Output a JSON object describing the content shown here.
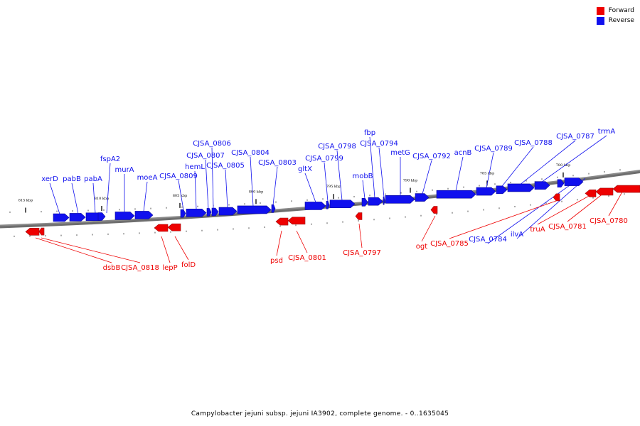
{
  "caption": "Campylobacter jejuni subsp. jejuni IA3902, complete genome. - 0..1635045",
  "legend": [
    {
      "label": "Forward",
      "color": "#ee0000"
    },
    {
      "label": "Reverse",
      "color": "#1010ee"
    }
  ],
  "colors": {
    "forward": "#ee0000",
    "reverse": "#1010ee",
    "backbone": "#8a8a8a"
  },
  "scale_labels": [
    "815 kbp",
    "810 kbp",
    "805 kbp",
    "800 kbp",
    "795 kbp",
    "790 kbp",
    "785 kbp",
    "780 kbp"
  ],
  "genes": [
    {
      "name": "xerD",
      "strand": "reverse"
    },
    {
      "name": "pabB",
      "strand": "reverse"
    },
    {
      "name": "pabA",
      "strand": "reverse"
    },
    {
      "name": "fspA2",
      "strand": "reverse"
    },
    {
      "name": "murA",
      "strand": "reverse"
    },
    {
      "name": "moeA",
      "strand": "reverse"
    },
    {
      "name": "CJSA_0809",
      "strand": "reverse"
    },
    {
      "name": "hemL",
      "strand": "reverse"
    },
    {
      "name": "CJSA_0807",
      "strand": "reverse"
    },
    {
      "name": "CJSA_0806",
      "strand": "reverse"
    },
    {
      "name": "CJSA_0805",
      "strand": "reverse"
    },
    {
      "name": "CJSA_0804",
      "strand": "reverse"
    },
    {
      "name": "CJSA_0803",
      "strand": "reverse"
    },
    {
      "name": "gltX",
      "strand": "reverse"
    },
    {
      "name": "CJSA_0799",
      "strand": "reverse"
    },
    {
      "name": "CJSA_0798",
      "strand": "reverse"
    },
    {
      "name": "mobB",
      "strand": "reverse"
    },
    {
      "name": "fbp",
      "strand": "reverse"
    },
    {
      "name": "CJSA_0794",
      "strand": "reverse"
    },
    {
      "name": "metG",
      "strand": "reverse"
    },
    {
      "name": "CJSA_0792",
      "strand": "reverse"
    },
    {
      "name": "acnB",
      "strand": "reverse"
    },
    {
      "name": "CJSA_0789",
      "strand": "reverse"
    },
    {
      "name": "CJSA_0788",
      "strand": "reverse"
    },
    {
      "name": "CJSA_0787",
      "strand": "reverse"
    },
    {
      "name": "trmA",
      "strand": "reverse"
    },
    {
      "name": "CJSA_0784",
      "strand": "reverse"
    },
    {
      "name": "ilvA",
      "strand": "reverse"
    },
    {
      "name": "dsbB",
      "strand": "forward"
    },
    {
      "name": "CJSA_0818",
      "strand": "forward"
    },
    {
      "name": "lepP",
      "strand": "forward"
    },
    {
      "name": "folD",
      "strand": "forward"
    },
    {
      "name": "psd",
      "strand": "forward"
    },
    {
      "name": "CJSA_0801",
      "strand": "forward"
    },
    {
      "name": "CJSA_0797",
      "strand": "forward"
    },
    {
      "name": "ogt",
      "strand": "forward"
    },
    {
      "name": "CJSA_0785",
      "strand": "forward"
    },
    {
      "name": "truA",
      "strand": "forward"
    },
    {
      "name": "CJSA_0781",
      "strand": "forward"
    },
    {
      "name": "CJSA_0780",
      "strand": "forward"
    }
  ]
}
